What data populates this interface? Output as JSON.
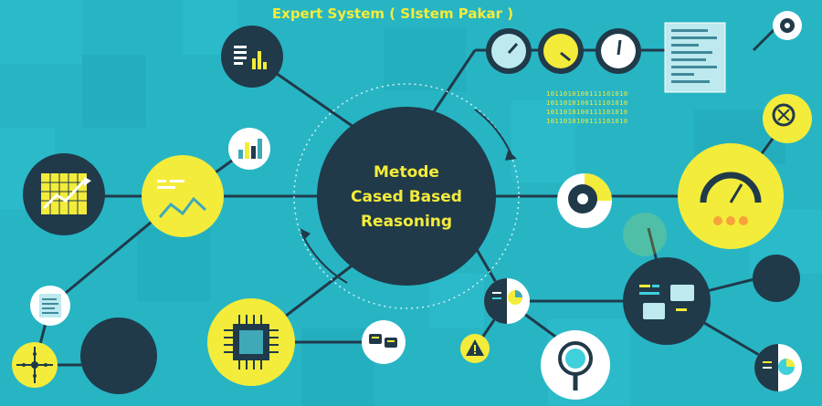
{
  "header": {
    "title": "Expert System ( SIstem Pakar )"
  },
  "center": {
    "line1": "Metode",
    "line2": "Cased Based",
    "line3": "Reasoning"
  },
  "binary_block": {
    "rows": [
      "1011010100111101010",
      "1011010100111101010",
      "1011010100111101010",
      "1011010100111101010"
    ]
  },
  "colors": {
    "background": "#27b5c4",
    "dark_node": "#203a4a",
    "yellow_node": "#f4ec3a",
    "white_node": "#ffffff",
    "accent_cyan": "#3fd0dc"
  },
  "icons": [
    "report-chart-icon",
    "gauge-icon",
    "document-icon",
    "gear-icon",
    "line-chart-icon",
    "bar-chart-icon",
    "growth-chart-icon",
    "chip-icon",
    "chat-icon",
    "magnifier-icon",
    "warning-icon",
    "speedometer-icon",
    "valve-icon",
    "pie-chart-icon",
    "crosshair-icon",
    "binary-globe-icon"
  ]
}
